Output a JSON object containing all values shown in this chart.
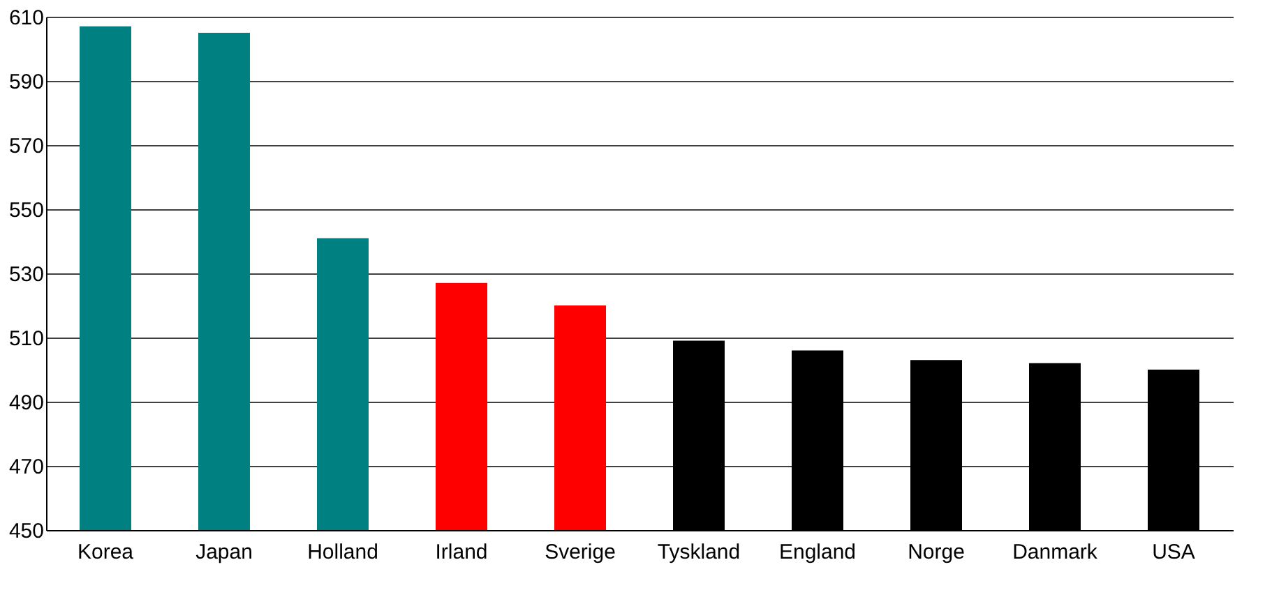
{
  "chart_data": {
    "type": "bar",
    "categories": [
      "Korea",
      "Japan",
      "Holland",
      "Irland",
      "Sverige",
      "Tyskland",
      "England",
      "Norge",
      "Danmark",
      "USA"
    ],
    "values": [
      607,
      605,
      541,
      527,
      520,
      509,
      506,
      503,
      502,
      500
    ],
    "colors": [
      "#008080",
      "#008080",
      "#008080",
      "#ff0000",
      "#ff0000",
      "#000000",
      "#000000",
      "#000000",
      "#000000",
      "#000000"
    ],
    "ylim": [
      450,
      610
    ],
    "yticks": [
      450,
      470,
      490,
      510,
      530,
      550,
      570,
      590,
      610
    ],
    "grid": "y"
  }
}
